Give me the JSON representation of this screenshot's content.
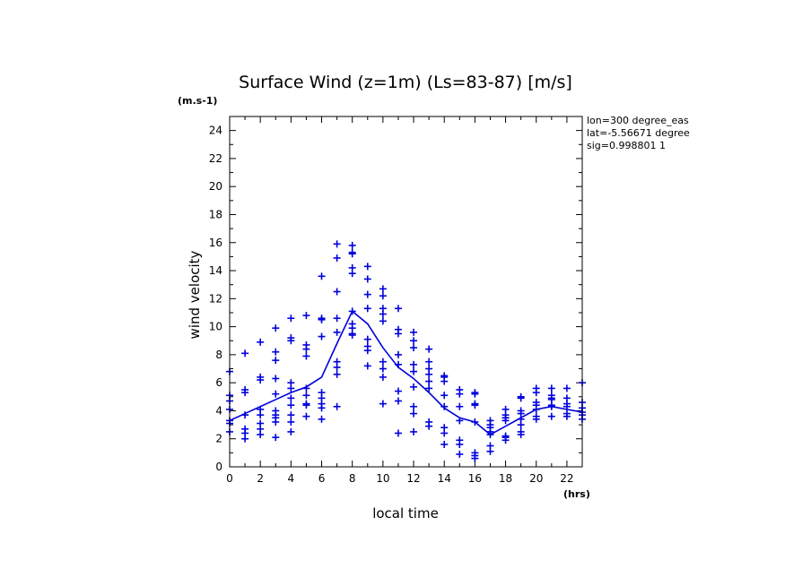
{
  "chart_data": {
    "type": "scatter",
    "title": "Surface Wind (z=1m) (Ls=83-87) [m/s]",
    "ylabel": "wind velocity",
    "yunit": "(m.s-1)",
    "xlabel": "local time",
    "xunit": "(hrs)",
    "xlim": [
      0,
      23
    ],
    "ylim": [
      0,
      25
    ],
    "xticks": [
      0,
      2,
      4,
      6,
      8,
      10,
      12,
      14,
      16,
      18,
      20,
      22
    ],
    "yticks": [
      0,
      2,
      4,
      6,
      8,
      10,
      12,
      14,
      16,
      18,
      20,
      22,
      24
    ],
    "info": [
      "lon=300 degree_eas",
      "lat=-5.56671 degree",
      "sig=0.998801 1"
    ],
    "color": "#0000dd",
    "grid": false,
    "mean_line": {
      "x": [
        0,
        1,
        2,
        3,
        4,
        5,
        6,
        7,
        8,
        9,
        10,
        11,
        12,
        13,
        14,
        15,
        16,
        17,
        18,
        19,
        20,
        21,
        22,
        23
      ],
      "y": [
        3.3,
        3.8,
        4.3,
        4.8,
        5.3,
        5.7,
        6.4,
        8.8,
        11.1,
        10.2,
        8.5,
        7.1,
        6.3,
        5.3,
        4.2,
        3.5,
        3.2,
        2.3,
        2.9,
        3.5,
        4.1,
        4.3,
        4.1,
        3.9
      ]
    },
    "points": [
      {
        "x": 0,
        "y": [
          6.8,
          5.1,
          4.7,
          4.1,
          3.3,
          3.1,
          2.5
        ]
      },
      {
        "x": 1,
        "y": [
          8.1,
          5.5,
          5.3,
          3.7,
          2.7,
          2.4,
          2.0
        ]
      },
      {
        "x": 2,
        "y": [
          8.9,
          6.4,
          6.2,
          4.1,
          3.7,
          3.1,
          2.7,
          2.3
        ]
      },
      {
        "x": 3,
        "y": [
          9.9,
          8.2,
          7.6,
          6.3,
          5.2,
          4.0,
          3.7,
          3.5,
          3.2,
          2.1
        ]
      },
      {
        "x": 4,
        "y": [
          10.6,
          9.2,
          9.0,
          6.0,
          5.6,
          4.9,
          4.4,
          3.7,
          3.2,
          2.5
        ]
      },
      {
        "x": 5,
        "y": [
          10.8,
          8.7,
          8.4,
          7.9,
          5.6,
          5.1,
          4.5,
          4.4,
          3.6
        ]
      },
      {
        "x": 6,
        "y": [
          13.6,
          10.6,
          10.5,
          9.3,
          5.3,
          4.9,
          4.5,
          4.2,
          3.4
        ]
      },
      {
        "x": 7,
        "y": [
          15.9,
          14.9,
          12.5,
          10.6,
          9.6,
          7.5,
          7.1,
          6.6,
          4.3
        ]
      },
      {
        "x": 8,
        "y": [
          15.8,
          15.3,
          15.2,
          14.2,
          13.8,
          11.1,
          10.2,
          9.9,
          9.5,
          9.4
        ]
      },
      {
        "x": 9,
        "y": [
          14.3,
          13.4,
          12.3,
          11.3,
          9.1,
          8.6,
          8.3,
          7.2
        ]
      },
      {
        "x": 10,
        "y": [
          12.7,
          12.2,
          11.3,
          10.9,
          10.4,
          7.5,
          7.0,
          6.4,
          4.5
        ]
      },
      {
        "x": 11,
        "y": [
          11.3,
          9.8,
          9.5,
          8.0,
          7.3,
          5.4,
          4.7,
          2.4
        ]
      },
      {
        "x": 12,
        "y": [
          9.6,
          9.0,
          8.5,
          7.3,
          6.8,
          5.7,
          4.3,
          3.8,
          2.5
        ]
      },
      {
        "x": 13,
        "y": [
          8.4,
          7.5,
          7.0,
          6.6,
          6.1,
          5.6,
          3.2,
          2.9
        ]
      },
      {
        "x": 14,
        "y": [
          6.5,
          6.4,
          6.1,
          5.1,
          4.3,
          2.8,
          2.4,
          1.6
        ]
      },
      {
        "x": 15,
        "y": [
          5.5,
          5.2,
          4.3,
          3.3,
          1.9,
          1.6,
          0.9
        ]
      },
      {
        "x": 16,
        "y": [
          5.3,
          5.2,
          4.5,
          4.4,
          3.2,
          1.0,
          0.8,
          0.6
        ]
      },
      {
        "x": 17,
        "y": [
          3.3,
          3.0,
          2.8,
          2.5,
          2.3,
          1.5,
          1.1
        ]
      },
      {
        "x": 18,
        "y": [
          4.1,
          3.7,
          3.5,
          3.5,
          3.3,
          2.2,
          2.1,
          1.9
        ]
      },
      {
        "x": 19,
        "y": [
          5.0,
          4.9,
          4.0,
          3.8,
          3.4,
          3.0,
          2.5,
          2.3
        ]
      },
      {
        "x": 20,
        "y": [
          5.6,
          5.3,
          4.6,
          4.4,
          4.1,
          3.6,
          3.4
        ]
      },
      {
        "x": 21,
        "y": [
          5.6,
          5.1,
          4.9,
          4.8,
          4.4,
          4.3,
          3.6
        ]
      },
      {
        "x": 22,
        "y": [
          5.6,
          4.9,
          4.5,
          4.3,
          3.8,
          3.6
        ]
      },
      {
        "x": 23,
        "y": [
          6.0,
          4.6,
          4.2,
          3.9,
          3.7,
          3.4
        ]
      }
    ]
  }
}
